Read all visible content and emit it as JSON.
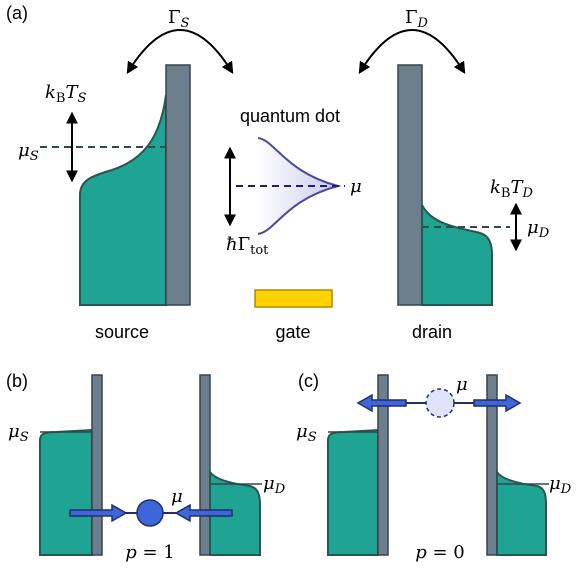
{
  "labels": {
    "panel_a": [
      {
        "t": "(a)"
      }
    ],
    "gamma_s": [
      {
        "t": "Γ"
      },
      {
        "t": "S",
        "sub": true,
        "italic": true
      }
    ],
    "gamma_d": [
      {
        "t": "Γ"
      },
      {
        "t": "D",
        "sub": true,
        "italic": true
      }
    ],
    "kbt_s": [
      {
        "t": "k",
        "italic": true
      },
      {
        "t": "B",
        "sub": true
      },
      {
        "t": "T",
        "italic": true
      },
      {
        "t": "S",
        "sub": true,
        "italic": true
      }
    ],
    "mu_s_a": [
      {
        "t": "μ",
        "italic": true
      },
      {
        "t": "S",
        "sub": true,
        "italic": true
      }
    ],
    "quantum_dot": [
      {
        "t": "quantum dot"
      }
    ],
    "mu_a": [
      {
        "t": "μ",
        "italic": true
      }
    ],
    "hbar_gamma": [
      {
        "t": "ħ",
        "italic": true
      },
      {
        "t": "Γ"
      },
      {
        "t": "tot",
        "sub": true
      }
    ],
    "kbt_d": [
      {
        "t": "k",
        "italic": true
      },
      {
        "t": "B",
        "sub": true
      },
      {
        "t": "T",
        "italic": true
      },
      {
        "t": "D",
        "sub": true,
        "italic": true
      }
    ],
    "mu_d_a": [
      {
        "t": "μ",
        "italic": true
      },
      {
        "t": "D",
        "sub": true,
        "italic": true
      }
    ],
    "source": [
      {
        "t": "source"
      }
    ],
    "gate": [
      {
        "t": "gate"
      }
    ],
    "drain": [
      {
        "t": "drain"
      }
    ],
    "panel_b": [
      {
        "t": "(b)"
      }
    ],
    "mu_s_b": [
      {
        "t": "μ",
        "italic": true
      },
      {
        "t": "S",
        "sub": true,
        "italic": true
      }
    ],
    "mu_d_b": [
      {
        "t": "μ",
        "italic": true
      },
      {
        "t": "D",
        "sub": true,
        "italic": true
      }
    ],
    "mu_b": [
      {
        "t": "μ",
        "italic": true
      }
    ],
    "p_b": [
      {
        "t": "p",
        "italic": true
      },
      {
        "t": " = 1"
      }
    ],
    "panel_c": [
      {
        "t": "(c)"
      }
    ],
    "mu_c": [
      {
        "t": "μ",
        "italic": true
      }
    ],
    "mu_s_c": [
      {
        "t": "μ",
        "italic": true
      },
      {
        "t": "S",
        "sub": true,
        "italic": true
      }
    ],
    "mu_d_c": [
      {
        "t": "μ",
        "italic": true
      },
      {
        "t": "D",
        "sub": true,
        "italic": true
      }
    ],
    "p_c": [
      {
        "t": "p",
        "italic": true
      },
      {
        "t": " = 0"
      }
    ]
  }
}
